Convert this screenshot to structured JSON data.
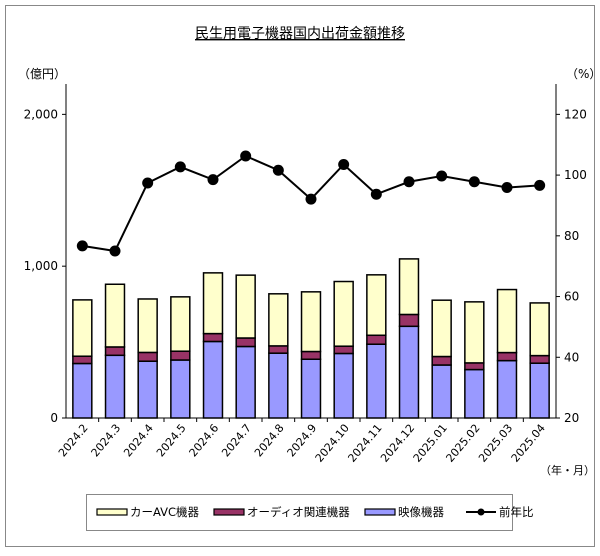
{
  "chart_data": {
    "type": "bar",
    "title": "民生用電子機器国内出荷金額推移",
    "ylabel_left": "（億円）",
    "ylabel_right": "（%）",
    "xlabel": "（年・月）",
    "categories": [
      "2024.2",
      "2024.3",
      "2024.4",
      "2024.5",
      "2024.6",
      "2024.7",
      "2024.8",
      "2024.9",
      "2024.10",
      "2024.11",
      "2024.12",
      "2025.01",
      "2025.02",
      "2025.03",
      "2025.04"
    ],
    "ylim_left": [
      0,
      2200
    ],
    "yticks_left": [
      0,
      1000,
      2000
    ],
    "ytick_labels_left": [
      "0",
      "1,000",
      "2,000"
    ],
    "ylim_right": [
      20,
      130
    ],
    "yticks_right": [
      20,
      40,
      60,
      80,
      100,
      120
    ],
    "stacked": true,
    "series": [
      {
        "name": "映像機器",
        "kind": "bar",
        "axis": "left",
        "color": "#9999ff",
        "values": [
          359,
          413,
          374,
          382,
          504,
          471,
          427,
          387,
          425,
          486,
          604,
          349,
          319,
          378,
          361
        ]
      },
      {
        "name": "オーディオ関連機器",
        "kind": "bar",
        "axis": "left",
        "color": "#993366",
        "values": [
          48,
          55,
          58,
          58,
          52,
          56,
          48,
          51,
          48,
          59,
          78,
          56,
          44,
          53,
          50
        ]
      },
      {
        "name": "カーAVC機器",
        "kind": "bar",
        "axis": "left",
        "color": "#ffffcc",
        "values": [
          371,
          413,
          352,
          358,
          400,
          414,
          343,
          393,
          426,
          398,
          366,
          371,
          402,
          415,
          347
        ]
      },
      {
        "name": "前年比",
        "kind": "line",
        "axis": "right",
        "color": "#000000",
        "values": [
          76.7,
          75.0,
          97.4,
          102.7,
          98.5,
          106.3,
          101.6,
          92.1,
          103.5,
          93.7,
          97.8,
          99.7,
          97.8,
          95.9,
          96.6
        ]
      }
    ],
    "legend_order": [
      "カーAVC機器",
      "オーディオ関連機器",
      "映像機器",
      "前年比"
    ],
    "legend_placement": "bottom",
    "grid": false
  }
}
